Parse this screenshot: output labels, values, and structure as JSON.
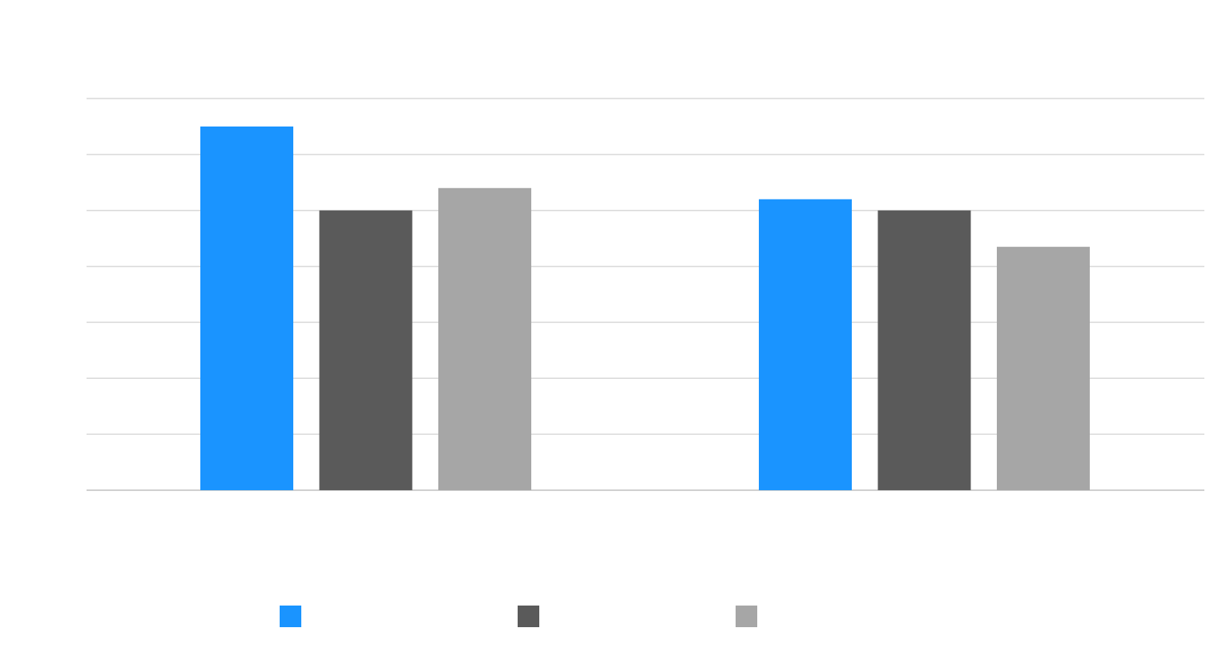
{
  "chart_data": {
    "type": "bar",
    "title": "",
    "xlabel": "",
    "ylabel": "",
    "categories": [
      "",
      ""
    ],
    "series": [
      {
        "color": "#1a94ff",
        "values": [
          6.5,
          5.2
        ]
      },
      {
        "color": "#5a5a5a",
        "values": [
          5.0,
          5.0
        ]
      },
      {
        "color": "#a6a6a6",
        "values": [
          5.4,
          4.35
        ]
      }
    ],
    "ylim": [
      0,
      7
    ],
    "ytick_step": 1,
    "grid": true,
    "legend_position": "bottom",
    "data_labels_visible": false
  }
}
